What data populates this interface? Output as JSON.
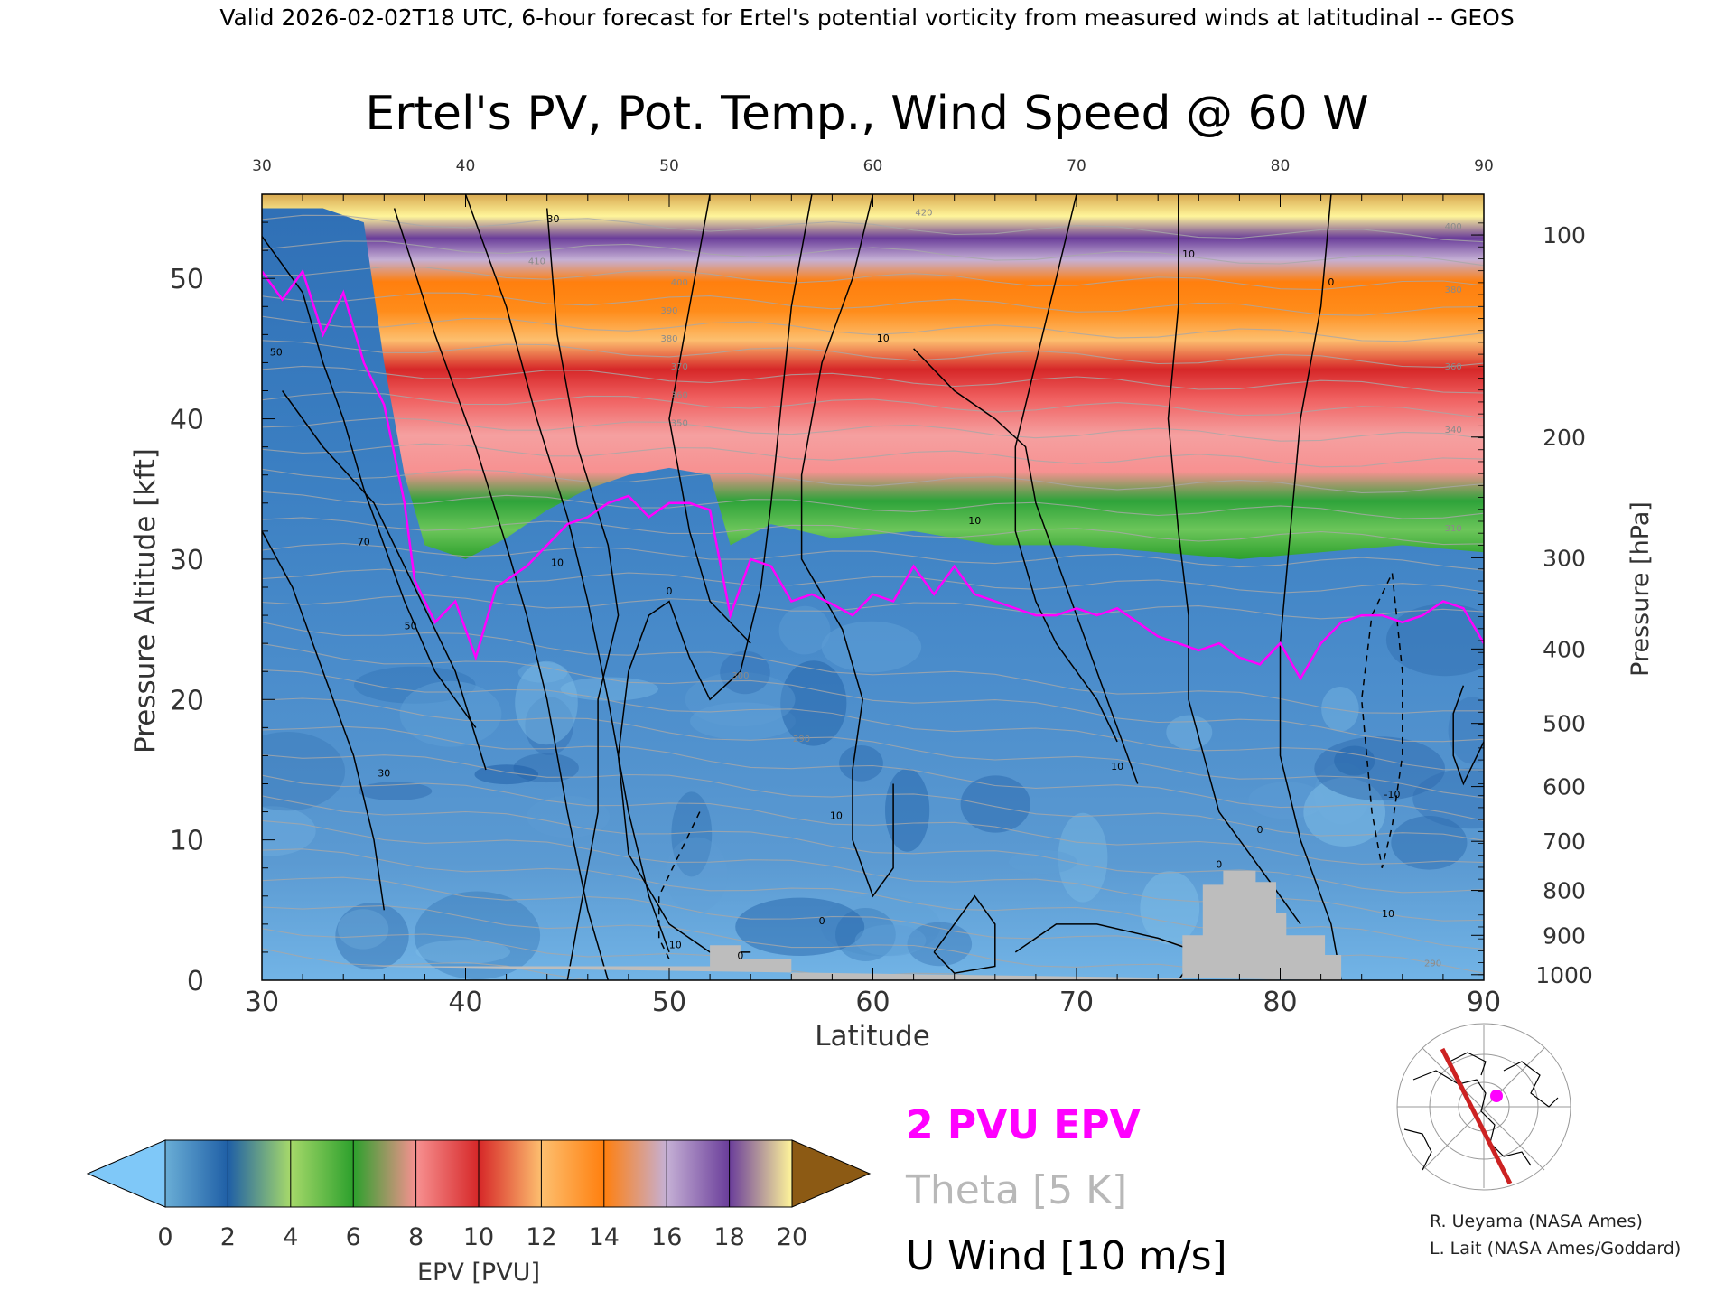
{
  "header": "Valid 2026-02-02T18 UTC, 6-hour forecast for Ertel's potential vorticity from measured winds at latitudinal -- GEOS",
  "chart_data": {
    "type": "heatmap",
    "title": "Ertel's PV, Pot. Temp., Wind Speed @ 60 W",
    "xlabel": "Latitude",
    "ylabel": "Pressure Altitude [kft]",
    "ylabel_right": "Pressure [hPa]",
    "xlim": [
      30,
      90
    ],
    "ylim": [
      0,
      56
    ],
    "x_ticks": [
      30,
      40,
      50,
      60,
      70,
      80,
      90
    ],
    "y_ticks": [
      0,
      10,
      20,
      30,
      40,
      50
    ],
    "top_ticks": [
      "30",
      "40",
      "50",
      "60",
      "70",
      "80",
      "90"
    ],
    "pressure_ticks": [
      {
        "label": "100",
        "kft": 53.1
      },
      {
        "label": "200",
        "kft": 38.7
      },
      {
        "label": "300",
        "kft": 30.1
      },
      {
        "label": "400",
        "kft": 23.6
      },
      {
        "label": "500",
        "kft": 18.3
      },
      {
        "label": "600",
        "kft": 13.8
      },
      {
        "label": "700",
        "kft": 9.9
      },
      {
        "label": "800",
        "kft": 6.4
      },
      {
        "label": "900",
        "kft": 3.2
      },
      {
        "label": "1000",
        "kft": 0.4
      }
    ],
    "epv_2pvu_kft": [
      [
        30,
        50.5
      ],
      [
        31,
        48.5
      ],
      [
        32,
        50.5
      ],
      [
        33,
        46
      ],
      [
        34,
        49
      ],
      [
        35,
        44
      ],
      [
        36,
        41
      ],
      [
        37,
        34
      ],
      [
        37.5,
        28.5
      ],
      [
        38.5,
        25.5
      ],
      [
        39.5,
        27
      ],
      [
        40.5,
        23
      ],
      [
        41.5,
        28
      ],
      [
        43,
        29.5
      ],
      [
        44,
        31
      ],
      [
        45,
        32.5
      ],
      [
        46,
        33
      ],
      [
        47,
        34
      ],
      [
        48,
        34.5
      ],
      [
        49,
        33
      ],
      [
        50,
        34
      ],
      [
        51,
        34
      ],
      [
        52,
        33.5
      ],
      [
        53,
        26
      ],
      [
        54,
        30
      ],
      [
        55,
        29.5
      ],
      [
        56,
        27
      ],
      [
        57,
        27.5
      ],
      [
        58,
        26.8
      ],
      [
        59,
        26
      ],
      [
        60,
        27.5
      ],
      [
        61,
        27
      ],
      [
        62,
        29.5
      ],
      [
        63,
        27.5
      ],
      [
        64,
        29.5
      ],
      [
        65,
        27.5
      ],
      [
        66,
        27
      ],
      [
        67,
        26.5
      ],
      [
        68,
        26
      ],
      [
        69,
        26
      ],
      [
        70,
        26.5
      ],
      [
        71,
        26
      ],
      [
        72,
        26.5
      ],
      [
        73,
        25.5
      ],
      [
        74,
        24.5
      ],
      [
        75,
        24
      ],
      [
        76,
        23.5
      ],
      [
        77,
        24
      ],
      [
        78,
        23
      ],
      [
        79,
        22.5
      ],
      [
        80,
        24
      ],
      [
        81,
        21.5
      ],
      [
        82,
        24
      ],
      [
        83,
        25.5
      ],
      [
        84,
        26
      ],
      [
        85,
        26
      ],
      [
        86,
        25.5
      ],
      [
        87,
        26
      ],
      [
        88,
        27
      ],
      [
        89,
        26.5
      ],
      [
        90,
        24
      ]
    ],
    "tropopause_lowcolor_kft": [
      [
        30,
        55
      ],
      [
        33,
        55
      ],
      [
        35,
        54
      ],
      [
        36,
        44
      ],
      [
        37,
        36
      ],
      [
        38,
        31
      ],
      [
        40,
        30
      ],
      [
        42,
        31.5
      ],
      [
        44,
        33.5
      ],
      [
        46,
        35
      ],
      [
        48,
        36
      ],
      [
        50,
        36.5
      ],
      [
        52,
        36
      ],
      [
        53,
        31
      ],
      [
        55,
        32.5
      ],
      [
        58,
        31.5
      ],
      [
        62,
        32
      ],
      [
        66,
        31
      ],
      [
        70,
        31
      ],
      [
        74,
        30.5
      ],
      [
        78,
        30
      ],
      [
        82,
        30.5
      ],
      [
        86,
        31
      ],
      [
        90,
        30.5
      ]
    ],
    "pv_colorbar": {
      "label": "EPV [PVU]",
      "ticks": [
        "0",
        "2",
        "4",
        "6",
        "8",
        "10",
        "12",
        "14",
        "16",
        "18",
        "20"
      ],
      "colors": [
        "#6aaed6",
        "#1f5fa6",
        "#a6d96a",
        "#2ca02c",
        "#f79191",
        "#d62728",
        "#fdbf6f",
        "#ff7f0e",
        "#c5b0d5",
        "#6a3d9a",
        "#fff59a"
      ],
      "under_color": "#7fc8f8",
      "over_color": "#8c5a14"
    },
    "theta_labels": [
      {
        "text": "420",
        "lat": 62.5,
        "kft": 54.5
      },
      {
        "text": "410",
        "lat": 43.5,
        "kft": 51
      },
      {
        "text": "400",
        "lat": 50.5,
        "kft": 49.5
      },
      {
        "text": "390",
        "lat": 50,
        "kft": 47.5
      },
      {
        "text": "380",
        "lat": 50,
        "kft": 45.5
      },
      {
        "text": "370",
        "lat": 50.5,
        "kft": 43.5
      },
      {
        "text": "360",
        "lat": 50.5,
        "kft": 41.5
      },
      {
        "text": "350",
        "lat": 50.5,
        "kft": 39.5
      },
      {
        "text": "400",
        "lat": 88.5,
        "kft": 53.5
      },
      {
        "text": "380",
        "lat": 88.5,
        "kft": 49
      },
      {
        "text": "360",
        "lat": 88.5,
        "kft": 43.5
      },
      {
        "text": "340",
        "lat": 88.5,
        "kft": 39
      },
      {
        "text": "310",
        "lat": 88.5,
        "kft": 32
      },
      {
        "text": "300",
        "lat": 53.5,
        "kft": 21.5
      },
      {
        "text": "290",
        "lat": 56.5,
        "kft": 17
      },
      {
        "text": "290",
        "lat": 87.5,
        "kft": 1
      }
    ],
    "u_wind_contours": [
      {
        "points": [
          [
            30,
            53
          ],
          [
            32,
            49
          ],
          [
            33,
            44
          ],
          [
            34,
            40
          ],
          [
            35,
            35
          ],
          [
            36,
            31
          ],
          [
            37,
            27
          ],
          [
            38.5,
            22
          ],
          [
            40.5,
            18
          ]
        ],
        "dashed": false
      },
      {
        "points": [
          [
            31,
            42
          ],
          [
            33,
            38
          ],
          [
            35.5,
            34
          ],
          [
            37.5,
            28
          ],
          [
            39.5,
            22
          ],
          [
            41,
            15
          ]
        ],
        "dashed": false
      },
      {
        "points": [
          [
            30,
            32
          ],
          [
            31.5,
            28
          ],
          [
            33,
            22
          ],
          [
            34.5,
            16
          ],
          [
            35.5,
            10
          ],
          [
            36,
            5
          ]
        ],
        "dashed": false
      },
      {
        "points": [
          [
            36.5,
            55
          ],
          [
            38.5,
            46
          ],
          [
            40.5,
            38
          ],
          [
            42,
            31
          ],
          [
            43,
            26
          ],
          [
            44,
            20
          ],
          [
            45,
            12
          ],
          [
            46,
            5
          ],
          [
            47,
            0
          ]
        ],
        "dashed": false
      },
      {
        "points": [
          [
            40,
            56
          ],
          [
            42,
            48
          ],
          [
            43.5,
            40
          ],
          [
            45,
            33
          ],
          [
            46,
            27
          ],
          [
            47,
            20
          ],
          [
            48,
            12
          ],
          [
            49,
            6
          ],
          [
            50,
            2
          ]
        ],
        "dashed": false
      },
      {
        "points": [
          [
            44,
            55
          ],
          [
            44.5,
            46
          ],
          [
            45.5,
            38
          ],
          [
            47,
            31
          ],
          [
            47.5,
            26
          ],
          [
            46.5,
            20
          ],
          [
            46.5,
            12
          ],
          [
            45.5,
            4
          ],
          [
            45,
            0
          ]
        ],
        "dashed": false
      },
      {
        "points": [
          [
            52,
            56
          ],
          [
            51,
            48
          ],
          [
            50,
            40
          ],
          [
            51,
            32
          ],
          [
            52,
            27
          ],
          [
            54,
            24
          ]
        ],
        "dashed": false
      },
      {
        "points": [
          [
            57,
            56
          ],
          [
            56,
            48
          ],
          [
            55.5,
            41
          ],
          [
            55,
            34
          ],
          [
            54.5,
            28
          ],
          [
            53.5,
            22
          ],
          [
            52,
            20
          ],
          [
            51,
            23
          ],
          [
            50,
            27
          ],
          [
            49,
            26
          ],
          [
            48,
            22
          ],
          [
            47.5,
            16
          ],
          [
            48,
            9
          ],
          [
            50,
            4
          ],
          [
            52,
            2
          ],
          [
            54,
            2
          ]
        ],
        "dashed": false
      },
      {
        "points": [
          [
            60,
            56
          ],
          [
            59,
            50
          ],
          [
            57.5,
            44
          ],
          [
            56.5,
            36
          ],
          [
            56.5,
            30
          ],
          [
            58.5,
            25
          ],
          [
            59.5,
            20
          ],
          [
            59,
            15
          ],
          [
            59,
            10
          ],
          [
            60,
            6
          ],
          [
            61,
            8
          ],
          [
            61,
            14
          ]
        ],
        "dashed": false
      },
      {
        "points": [
          [
            51.5,
            12
          ],
          [
            50.5,
            9
          ],
          [
            49.5,
            6
          ],
          [
            49.5,
            3
          ],
          [
            50,
            1.5
          ]
        ],
        "dashed": true
      },
      {
        "points": [
          [
            62,
            45
          ],
          [
            64,
            42
          ],
          [
            66,
            40
          ],
          [
            67.5,
            38
          ],
          [
            68,
            34
          ],
          [
            69,
            30
          ],
          [
            70.5,
            24
          ],
          [
            72,
            18
          ],
          [
            73,
            14
          ]
        ],
        "dashed": false
      },
      {
        "points": [
          [
            70,
            56
          ],
          [
            69,
            50
          ],
          [
            68,
            44
          ],
          [
            67,
            38
          ],
          [
            67,
            32
          ],
          [
            68,
            27
          ],
          [
            69,
            24
          ],
          [
            71,
            20
          ],
          [
            72,
            17
          ]
        ],
        "dashed": false
      },
      {
        "points": [
          [
            75,
            56
          ],
          [
            75,
            48
          ],
          [
            74.5,
            40
          ],
          [
            75,
            32
          ],
          [
            75.5,
            26
          ],
          [
            75.5,
            20
          ],
          [
            77,
            12
          ],
          [
            79,
            8
          ],
          [
            81,
            4
          ]
        ],
        "dashed": false
      },
      {
        "points": [
          [
            82.5,
            56
          ],
          [
            82,
            48
          ],
          [
            81,
            40
          ],
          [
            80.5,
            32
          ],
          [
            80,
            24
          ],
          [
            80,
            16
          ],
          [
            81,
            10
          ],
          [
            82.5,
            4
          ],
          [
            83,
            0
          ]
        ],
        "dashed": false
      },
      {
        "points": [
          [
            85.5,
            29
          ],
          [
            86,
            22
          ],
          [
            86,
            16
          ],
          [
            85.5,
            11
          ],
          [
            85,
            8
          ],
          [
            84.5,
            12
          ],
          [
            84,
            20
          ],
          [
            84.5,
            26
          ],
          [
            85.5,
            29
          ]
        ],
        "dashed": true
      },
      {
        "points": [
          [
            89,
            21
          ],
          [
            88.5,
            19
          ],
          [
            88.5,
            16
          ],
          [
            89,
            14
          ],
          [
            90,
            17
          ]
        ],
        "dashed": false
      },
      {
        "points": [
          [
            63,
            2
          ],
          [
            64,
            4
          ],
          [
            65,
            6
          ],
          [
            66,
            4
          ],
          [
            66,
            1
          ],
          [
            64,
            0.5
          ],
          [
            63,
            2
          ]
        ],
        "dashed": false
      },
      {
        "points": [
          [
            67,
            2
          ],
          [
            69,
            4
          ],
          [
            71,
            4
          ],
          [
            74,
            3
          ],
          [
            76,
            2
          ],
          [
            75,
            0
          ]
        ],
        "dashed": false
      }
    ],
    "contour_labels": [
      {
        "text": "50",
        "lat": 30.7,
        "kft": 44.5
      },
      {
        "text": "70",
        "lat": 35,
        "kft": 31
      },
      {
        "text": "50",
        "lat": 37.3,
        "kft": 25
      },
      {
        "text": "30",
        "lat": 36,
        "kft": 14.5
      },
      {
        "text": "30",
        "lat": 44.3,
        "kft": 54
      },
      {
        "text": "10",
        "lat": 44.5,
        "kft": 29.5
      },
      {
        "text": "0",
        "lat": 50,
        "kft": 27.5
      },
      {
        "text": "10",
        "lat": 60.5,
        "kft": 45.5
      },
      {
        "text": "10",
        "lat": 58.2,
        "kft": 11.5
      },
      {
        "text": "10",
        "lat": 65,
        "kft": 32.5
      },
      {
        "text": "10",
        "lat": 72,
        "kft": 15
      },
      {
        "text": "10",
        "lat": 75.5,
        "kft": 51.5
      },
      {
        "text": "0",
        "lat": 82.5,
        "kft": 49.5
      },
      {
        "text": "-10",
        "lat": 85.5,
        "kft": 13
      },
      {
        "text": "10",
        "lat": 50.3,
        "kft": 2.3
      },
      {
        "text": "0",
        "lat": 53.5,
        "kft": 1.5
      },
      {
        "text": "0",
        "lat": 77,
        "kft": 8
      },
      {
        "text": "10",
        "lat": 85.3,
        "kft": 4.5
      },
      {
        "text": "0",
        "lat": 79,
        "kft": 10.5
      },
      {
        "text": "0",
        "lat": 57.5,
        "kft": 4
      }
    ],
    "terrain": [
      [
        34.5,
        1
      ],
      [
        52,
        1
      ],
      [
        52,
        2.5
      ],
      [
        53.5,
        2.5
      ],
      [
        53.5,
        1.5
      ],
      [
        56,
        1.5
      ],
      [
        56,
        0
      ],
      [
        75.2,
        0
      ],
      [
        75.2,
        3.2
      ],
      [
        76.2,
        3.2
      ],
      [
        76.2,
        6.8
      ],
      [
        77.2,
        6.8
      ],
      [
        77.2,
        7.8
      ],
      [
        78.8,
        7.8
      ],
      [
        78.8,
        7
      ],
      [
        79.8,
        7
      ],
      [
        79.8,
        4.8
      ],
      [
        80.3,
        4.8
      ],
      [
        80.3,
        3.2
      ],
      [
        82.2,
        3.2
      ],
      [
        82.2,
        1.8
      ],
      [
        83,
        1.8
      ],
      [
        83,
        0
      ]
    ],
    "legend": [
      {
        "text": "2 PVU EPV",
        "color": "#ff00ff"
      },
      {
        "text": "Theta [5 K]",
        "color": "#b8b8b8"
      },
      {
        "text": "U Wind [10 m/s]",
        "color": "#000000"
      }
    ]
  },
  "inset_map": {
    "icon": "globe-map-icon",
    "path_color": "#cc2222",
    "point_color": "#ff00ff"
  },
  "credits": [
    "R. Ueyama (NASA Ames)",
    "L. Lait (NASA Ames/Goddard)"
  ]
}
